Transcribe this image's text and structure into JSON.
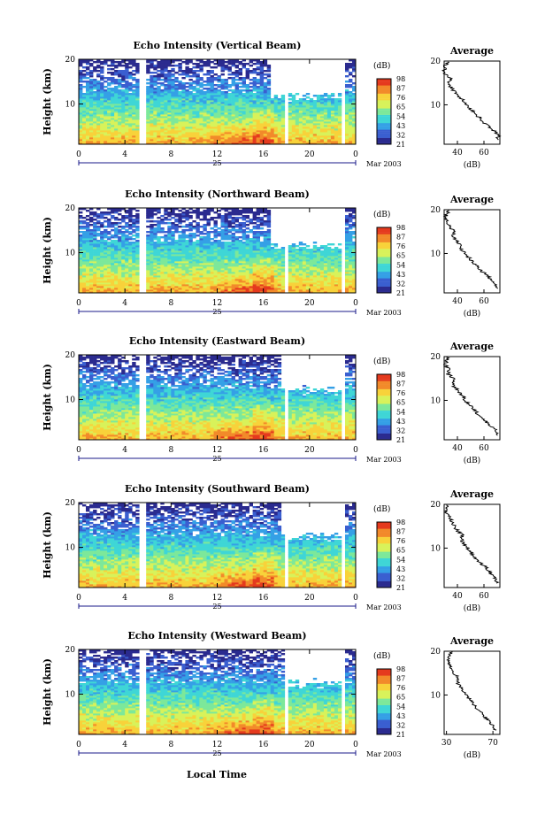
{
  "figure": {
    "date_label": "Mar 2003",
    "xlabel": "Local Time",
    "day_label": "25",
    "x_ticks": [
      "0",
      "4",
      "8",
      "12",
      "16",
      "20",
      "0"
    ],
    "y_ticks": [
      "10",
      "20"
    ],
    "height_label": "Height (km)",
    "colorbar_title": "(dB)",
    "colorbar_ticks": [
      "21",
      "32",
      "43",
      "54",
      "65",
      "76",
      "87",
      "98"
    ],
    "colorbar_colors": [
      "#2b2b8f",
      "#3a5fd0",
      "#35a0e6",
      "#3fd6d6",
      "#7de89a",
      "#d8f25a",
      "#f8d23a",
      "#f28a2a",
      "#e53a1e"
    ]
  },
  "chart_data": [
    {
      "type": "heatmap",
      "title": "Echo Intensity (Vertical Beam)",
      "avg_title": "Average",
      "avg_xlabel": "(dB)",
      "avg_x_ticks": [
        "40",
        "60"
      ],
      "avg_xlim": [
        30,
        72
      ],
      "xlim": [
        0,
        24
      ],
      "ylim": [
        1,
        20
      ],
      "data_gaps_hours": [
        [
          5.2,
          5.9
        ],
        [
          17.9,
          18.2
        ],
        [
          22.9,
          23.1
        ]
      ],
      "clear_region": {
        "start_hour": 16.5,
        "min_height_km": 11.5
      },
      "average_profile": {
        "height_km": [
          2,
          3,
          4,
          5,
          6,
          7,
          8,
          9,
          10,
          11,
          12,
          13,
          14,
          15,
          16,
          17,
          18,
          19,
          20
        ],
        "db": [
          70,
          71,
          68,
          64,
          60,
          57,
          53,
          50,
          47,
          44,
          41,
          38,
          35,
          33,
          35,
          31,
          30,
          31,
          33
        ]
      }
    },
    {
      "type": "heatmap",
      "title": "Echo Intensity (Northward Beam)",
      "avg_title": "Average",
      "avg_xlabel": "(dB)",
      "avg_x_ticks": [
        "40",
        "60"
      ],
      "avg_xlim": [
        30,
        72
      ],
      "xlim": [
        0,
        24
      ],
      "ylim": [
        1,
        20
      ],
      "data_gaps_hours": [
        [
          5.2,
          5.9
        ],
        [
          17.9,
          18.2
        ],
        [
          22.9,
          23.1
        ]
      ],
      "clear_region": {
        "start_hour": 16.5,
        "min_height_km": 11.5
      },
      "average_profile": {
        "height_km": [
          2,
          3,
          4,
          5,
          6,
          7,
          8,
          9,
          10,
          11,
          12,
          13,
          14,
          15,
          16,
          17,
          18,
          19,
          20
        ],
        "db": [
          70,
          69,
          66,
          62,
          58,
          55,
          52,
          49,
          46,
          43,
          42,
          39,
          37,
          38,
          34,
          33,
          31,
          32,
          33
        ]
      }
    },
    {
      "type": "heatmap",
      "title": "Echo Intensity (Eastward Beam)",
      "avg_title": "Average",
      "avg_xlabel": "(dB)",
      "avg_x_ticks": [
        "40",
        "60"
      ],
      "avg_xlim": [
        30,
        72
      ],
      "xlim": [
        0,
        24
      ],
      "ylim": [
        1,
        20
      ],
      "data_gaps_hours": [
        [
          5.2,
          5.9
        ],
        [
          17.9,
          18.2
        ],
        [
          22.9,
          23.1
        ]
      ],
      "clear_region": {
        "start_hour": 17.5,
        "min_height_km": 12.0
      },
      "average_profile": {
        "height_km": [
          2,
          3,
          4,
          5,
          6,
          7,
          8,
          9,
          10,
          11,
          12,
          13,
          14,
          15,
          16,
          17,
          18,
          19,
          20
        ],
        "db": [
          70,
          69,
          66,
          62,
          59,
          55,
          52,
          49,
          46,
          44,
          41,
          38,
          36,
          37,
          33,
          34,
          31,
          32,
          32
        ]
      }
    },
    {
      "type": "heatmap",
      "title": "Echo Intensity (Southward Beam)",
      "avg_title": "Average",
      "avg_xlabel": "(dB)",
      "avg_x_ticks": [
        "40",
        "60"
      ],
      "avg_xlim": [
        30,
        72
      ],
      "xlim": [
        0,
        24
      ],
      "ylim": [
        1,
        20
      ],
      "data_gaps_hours": [
        [
          5.2,
          5.9
        ],
        [
          17.9,
          18.2
        ],
        [
          22.9,
          23.1
        ]
      ],
      "clear_region": {
        "start_hour": 17.5,
        "min_height_km": 12.5
      },
      "average_profile": {
        "height_km": [
          2,
          3,
          4,
          5,
          6,
          7,
          8,
          9,
          10,
          11,
          12,
          13,
          14,
          15,
          16,
          17,
          18,
          19,
          20
        ],
        "db": [
          70,
          69,
          66,
          63,
          60,
          56,
          53,
          50,
          48,
          45,
          43,
          44,
          40,
          38,
          36,
          34,
          32,
          31,
          33
        ]
      }
    },
    {
      "type": "heatmap",
      "title": "Echo Intensity (Westward Beam)",
      "avg_title": "Average",
      "avg_xlabel": "(dB)",
      "avg_x_ticks": [
        "30",
        "70"
      ],
      "avg_xlim": [
        28,
        76
      ],
      "xlim": [
        0,
        24
      ],
      "ylim": [
        1,
        20
      ],
      "data_gaps_hours": [
        [
          5.2,
          5.9
        ],
        [
          17.9,
          18.2
        ],
        [
          22.9,
          23.1
        ]
      ],
      "clear_region": {
        "start_hour": 18.0,
        "min_height_km": 12.5
      },
      "average_profile": {
        "height_km": [
          2,
          3,
          4,
          5,
          6,
          7,
          8,
          9,
          10,
          11,
          12,
          13,
          14,
          15,
          16,
          17,
          18,
          19,
          20
        ],
        "db": [
          72,
          70,
          67,
          63,
          60,
          56,
          53,
          50,
          47,
          44,
          42,
          39,
          40,
          36,
          34,
          33,
          32,
          33,
          34
        ]
      }
    }
  ]
}
